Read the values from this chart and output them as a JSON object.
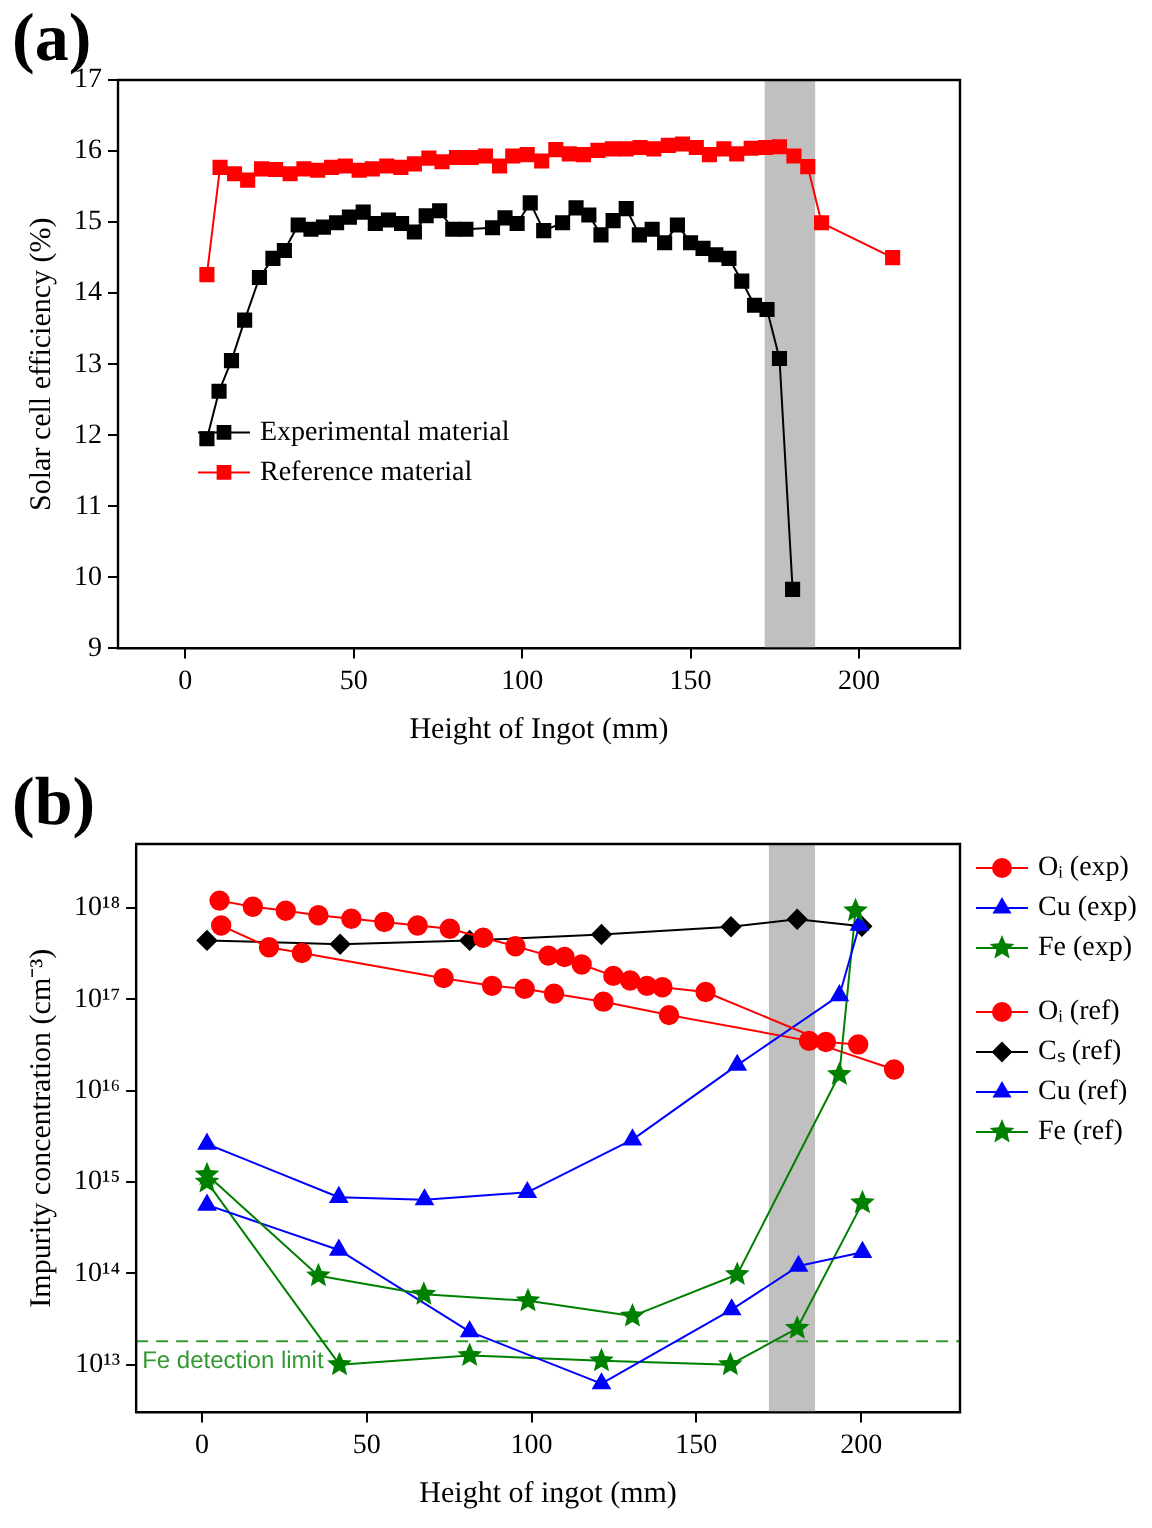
{
  "chart_data": [
    {
      "type": "line",
      "title": "(a)",
      "xlabel": "Height of Ingot (mm)",
      "ylabel": "Solar cell efficiency (%)",
      "xlim": [
        -20,
        230
      ],
      "xticks": [
        0,
        50,
        100,
        150,
        200
      ],
      "ylim": [
        9,
        17
      ],
      "yticks": [
        9,
        10,
        11,
        12,
        13,
        14,
        15,
        16,
        17
      ],
      "grid": false,
      "legend": "left",
      "bands": [
        {
          "axis": "x",
          "from": 172,
          "to": 187,
          "color": "#c0c0c0"
        }
      ],
      "series": [
        {
          "name": "Experimental material",
          "color": "#000000",
          "marker": "square",
          "x": [
            6.4,
            10,
            13.7,
            17.6,
            22,
            26,
            29.4,
            33.5,
            37.3,
            41,
            44.9,
            48.7,
            52.8,
            56.4,
            60.3,
            64.2,
            68,
            71.5,
            75.5,
            79.4,
            83.3,
            91.2,
            94.9,
            98.5,
            102.4,
            106.4,
            112,
            116,
            119.8,
            123.4,
            127,
            130.9,
            134.8,
            138.6,
            142.3,
            146.1,
            150,
            153.7,
            157.5,
            161.4,
            165.2,
            169,
            172.7,
            176.4,
            180.3
          ],
          "values": [
            11.95,
            12.62,
            13.05,
            13.62,
            14.22,
            14.49,
            14.6,
            14.96,
            14.9,
            14.93,
            14.99,
            15.07,
            15.14,
            14.98,
            15.03,
            14.98,
            14.86,
            15.09,
            15.16,
            14.9,
            14.9,
            14.92,
            15.06,
            14.98,
            15.27,
            14.88,
            14.99,
            15.2,
            15.1,
            14.82,
            15.02,
            15.19,
            14.82,
            14.9,
            14.71,
            14.96,
            14.71,
            14.63,
            14.54,
            14.49,
            14.17,
            13.83,
            13.77,
            13.08,
            9.83
          ]
        },
        {
          "name": "Reference material",
          "color": "#ff0000",
          "marker": "square",
          "x": [
            6.4,
            10.3,
            14.6,
            18.5,
            22.6,
            26.8,
            31.1,
            35.2,
            39.3,
            43.4,
            47.5,
            51.6,
            55.5,
            59.8,
            64,
            68,
            72.3,
            76.2,
            80.5,
            84.8,
            89.1,
            93.3,
            97.2,
            101.5,
            105.8,
            110,
            114,
            118.2,
            122.5,
            126.8,
            130.9,
            135,
            139.1,
            143.4,
            147.6,
            151.7,
            155.6,
            159.9,
            163.7,
            168,
            172.3,
            176.4,
            180.7,
            184.8,
            188.9,
            210
          ],
          "values": [
            14.26,
            15.77,
            15.68,
            15.59,
            15.75,
            15.74,
            15.68,
            15.75,
            15.73,
            15.77,
            15.79,
            15.73,
            15.75,
            15.79,
            15.77,
            15.82,
            15.9,
            15.85,
            15.91,
            15.91,
            15.93,
            15.79,
            15.93,
            15.95,
            15.86,
            16.02,
            15.96,
            15.95,
            16.01,
            16.03,
            16.03,
            16.05,
            16.03,
            16.08,
            16.1,
            16.05,
            15.95,
            16.03,
            15.96,
            16.04,
            16.05,
            16.06,
            15.93,
            15.78,
            14.99,
            14.5
          ]
        }
      ]
    },
    {
      "type": "line",
      "title": "(b)",
      "xlabel": "Height of ingot (mm)",
      "ylabel": "Impurity concentration (cm⁻³)",
      "log": "y",
      "xlim": [
        -20,
        230
      ],
      "xticks": [
        0,
        50,
        100,
        150,
        200
      ],
      "ylim": [
        3000000000000.0,
        5e+18
      ],
      "yticks": [
        {
          "value": 10000000000000.0,
          "label": "10¹³"
        },
        {
          "value": 100000000000000.0,
          "label": "10¹⁴"
        },
        {
          "value": 1000000000000000.0,
          "label": "10¹⁵"
        },
        {
          "value": 1e+16,
          "label": "10¹⁶"
        },
        {
          "value": 1e+17,
          "label": "10¹⁷"
        },
        {
          "value": 1e+18,
          "label": "10¹⁸"
        }
      ],
      "grid": false,
      "legend": "right",
      "bands": [
        {
          "axis": "x",
          "from": 172,
          "to": 186,
          "color": "#c0c0c0"
        }
      ],
      "ref_lines": [
        {
          "axis": "y",
          "value": 18000000000000.0,
          "label": "Fe detection limit",
          "color": "#339933",
          "line_style": "dashed"
        }
      ],
      "series": [
        {
          "name": "Oᵢ (exp)",
          "color": "#ff0000",
          "marker": "circle",
          "x": [
            5.3,
            15.4,
            25.4,
            35.3,
            45.3,
            55.3,
            65.4,
            75.2,
            85.3,
            95.1,
            105.1,
            110,
            115.2,
            124.8,
            129.9,
            135,
            139.7,
            152.8,
            189.3,
            199.1
          ],
          "values": [
            1.2e+18,
            1.03e+18,
            9.3e+17,
            8.3e+17,
            7.6e+17,
            7e+17,
            6.4e+17,
            5.9e+17,
            4.7e+17,
            3.8e+17,
            3e+17,
            2.9e+17,
            2.4e+17,
            1.8e+17,
            1.6e+17,
            1.4e+17,
            1.35e+17,
            1.2e+17,
            3.4e+16,
            3.2e+16
          ]
        },
        {
          "name": "Cu (exp)",
          "color": "#0000ff",
          "marker": "triangle",
          "x": [
            1.5,
            41.5,
            67.5,
            98.7,
            130.6,
            162.4,
            193.4,
            199.5
          ],
          "values": [
            2600000000000000.0,
            680000000000000.0,
            640000000000000.0,
            770000000000000.0,
            2900000000000000.0,
            1.9e+16,
            1.1e+17,
            6.5e+17
          ]
        },
        {
          "name": "Fe (exp)",
          "color": "#008000",
          "marker": "star",
          "x": [
            1.5,
            35.3,
            67.3,
            98.9,
            130.6,
            162.4,
            193.4,
            198.3
          ],
          "values": [
            1200000000000000.0,
            94000000000000.0,
            59000000000000.0,
            50000000000000.0,
            34000000000000.0,
            97000000000000.0,
            1.5e+16,
            9.3e+17
          ]
        },
        {
          "name": "Oᵢ (ref)",
          "color": "#ff0000",
          "marker": "circle",
          "x": [
            5.8,
            20.3,
            30.3,
            73.3,
            88,
            97.9,
            106.8,
            121.8,
            141.7,
            184.2,
            210
          ],
          "values": [
            6.4e+17,
            3.7e+17,
            3.2e+17,
            1.7e+17,
            1.4e+17,
            1.3e+17,
            1.15e+17,
            9.4e+16,
            6.7e+16,
            3.5e+16,
            1.7e+16
          ]
        },
        {
          "name": "Cₛ (ref)",
          "color": "#000000",
          "marker": "diamond",
          "x": [
            1.5,
            41.9,
            81.2,
            121.2,
            160.5,
            180.6,
            200.2
          ],
          "values": [
            4.4e+17,
            4e+17,
            4.4e+17,
            5.1e+17,
            6.2e+17,
            7.5e+17,
            6.3e+17
          ]
        },
        {
          "name": "Cu (ref)",
          "color": "#0000ff",
          "marker": "triangle",
          "x": [
            1.5,
            41.5,
            81.2,
            121.2,
            160.7,
            181,
            200.4
          ],
          "values": [
            560000000000000.0,
            180000000000000.0,
            23000000000000.0,
            6200000000000.0,
            40000000000000.0,
            120000000000000.0,
            170000000000000.0
          ]
        },
        {
          "name": "Fe (ref)",
          "color": "#008000",
          "marker": "star",
          "x": [
            1.5,
            41.7,
            81.2,
            121.2,
            160.3,
            180.6,
            200.4
          ],
          "values": [
            1000000000000000.0,
            10000000000000.0,
            12600000000000.0,
            11000000000000.0,
            10000000000000.0,
            25000000000000.0,
            590000000000000.0
          ]
        }
      ]
    }
  ]
}
